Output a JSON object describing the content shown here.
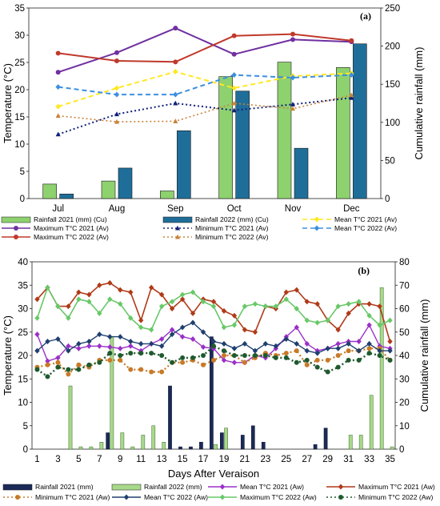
{
  "colors": {
    "rain2021_a": "#8ED16F",
    "rain2022_a": "#1F6E99",
    "max2021": "#7030A0",
    "max2022": "#C0392B",
    "min2021": "#10207A",
    "min2022": "#C8823A",
    "mean2021": "#FFE81F",
    "mean2022": "#3C8FE0",
    "rain2021_b": "#1B2A57",
    "rain2022_b": "#A8D88A",
    "mean2021_b": "#9B30C8",
    "max2021_b": "#B03A18",
    "min2021_b": "#C77A28",
    "mean2022_b": "#1F3F6E",
    "max2022_b": "#68C868",
    "min2022_b": "#1E5A2E"
  },
  "chart_data": [
    {
      "type": "bar-line",
      "panel_label": "(a)",
      "categories": [
        "Jul",
        "Aug",
        "Sep",
        "Oct",
        "Nov",
        "Dec"
      ],
      "ylabel": "Temperature (°C)",
      "ylabel_right": "Cumulative rainfall (mm)",
      "ylim": [
        0,
        35
      ],
      "yticks": [
        0,
        5,
        10,
        15,
        20,
        25,
        30,
        35
      ],
      "ylim_right": [
        0,
        250
      ],
      "yticks_right": [
        0,
        50,
        100,
        150,
        200,
        250
      ],
      "legend_position": "bottom",
      "bars": [
        {
          "name": "Rainfall 2021 (mm) (Cu)",
          "values": [
            19,
            23,
            10,
            160,
            179,
            172
          ]
        },
        {
          "name": "Rainfall 2022 (mm) (Cu)",
          "values": [
            6,
            40,
            89,
            141,
            66,
            203
          ]
        }
      ],
      "lines": [
        {
          "name": "Maximum  T°C 2021 (Av)",
          "values": [
            23.2,
            26.8,
            31.3,
            26.5,
            29.2,
            28.8
          ]
        },
        {
          "name": "Maximum T°C 2022 (Av)",
          "values": [
            26.7,
            25.3,
            25.1,
            29.9,
            30.2,
            29.0
          ]
        },
        {
          "name": "Minimum T°C 2021 (Av)",
          "values": [
            11.8,
            15.5,
            17.5,
            16.2,
            17.3,
            18.5
          ]
        },
        {
          "name": "Minimum T°C 2022 (Av)",
          "values": [
            15.2,
            14.1,
            14.2,
            17.5,
            16.5,
            19.0
          ]
        },
        {
          "name": "Mean T°C 2021 (Av)",
          "values": [
            16.9,
            20.3,
            23.3,
            20.3,
            22.5,
            23.0
          ]
        },
        {
          "name": "Mean T°C 2022 (Av)",
          "values": [
            20.5,
            19.1,
            19.1,
            22.7,
            22.2,
            22.7
          ]
        }
      ]
    },
    {
      "type": "bar-line",
      "panel_label": "(b)",
      "x": [
        1,
        2,
        3,
        4,
        5,
        6,
        7,
        8,
        9,
        10,
        11,
        12,
        13,
        14,
        15,
        16,
        17,
        18,
        19,
        20,
        21,
        22,
        23,
        24,
        25,
        26,
        27,
        28,
        29,
        30,
        31,
        32,
        33,
        34,
        35
      ],
      "xticks": [
        1,
        3,
        5,
        7,
        9,
        11,
        13,
        15,
        17,
        19,
        21,
        23,
        25,
        27,
        29,
        31,
        33,
        35
      ],
      "xlabel": "Days After Veraison",
      "ylabel": "Temperature (°C)",
      "ylabel_right": "Cumulative rainfall (mm)",
      "ylim": [
        0,
        40
      ],
      "yticks": [
        0,
        5,
        10,
        15,
        20,
        25,
        30,
        35,
        40
      ],
      "ylim_right": [
        0,
        80
      ],
      "yticks_right": [
        0,
        10,
        20,
        30,
        40,
        50,
        60,
        70,
        80
      ],
      "legend_position": "bottom",
      "bars": [
        {
          "name": "Rainfall 2021 (mm)",
          "values": [
            0,
            0,
            0,
            0,
            0,
            0,
            0,
            7,
            0,
            0,
            0,
            0,
            0,
            27,
            1,
            1,
            3,
            48,
            7,
            0,
            6,
            10,
            3,
            0,
            0,
            0,
            0,
            2,
            9,
            0,
            0,
            0,
            0,
            0,
            0
          ]
        },
        {
          "name": "Rainfall 2022 (mm)",
          "values": [
            0,
            0,
            0,
            27,
            1,
            1,
            3,
            48,
            7,
            1,
            6,
            10,
            3,
            0,
            0,
            0,
            0,
            2,
            9,
            0,
            0,
            0,
            0,
            0,
            0,
            0,
            0,
            0,
            0,
            0,
            6,
            6,
            23,
            69,
            1
          ]
        }
      ],
      "lines": [
        {
          "name": "Mean T°C 2021 (Aw)",
          "values": [
            24.5,
            18.8,
            19.5,
            22.0,
            21.5,
            22.0,
            22.0,
            21.8,
            21.5,
            22.0,
            21.0,
            22.5,
            23.5,
            25.5,
            24.0,
            23.5,
            21.8,
            21.5,
            19.0,
            18.5,
            18.5,
            20.0,
            19.5,
            21.5,
            24.0,
            26.0,
            22.5,
            21.0,
            21.5,
            22.5,
            23.0,
            23.0,
            26.5,
            22.0,
            21.5
          ]
        },
        {
          "name": "Maximum T°C 2021 (Aw)",
          "values": [
            32.0,
            34.5,
            30.5,
            30.5,
            33.5,
            33.0,
            35.0,
            35.5,
            34.0,
            33.5,
            27.5,
            34.5,
            33.0,
            30.0,
            32.0,
            29.0,
            32.0,
            31.5,
            29.5,
            28.5,
            25.5,
            25.0,
            30.5,
            30.0,
            33.5,
            34.0,
            31.5,
            31.0,
            27.5,
            25.5,
            29.0,
            31.0,
            31.0,
            30.5,
            23.0
          ]
        },
        {
          "name": "Minimum T°C 2021 (Aw)",
          "values": [
            17.5,
            18.0,
            18.5,
            16.0,
            18.0,
            17.5,
            19.0,
            19.0,
            19.0,
            17.0,
            17.0,
            16.5,
            16.5,
            18.5,
            18.5,
            19.0,
            18.0,
            19.0,
            20.0,
            20.0,
            18.5,
            19.5,
            20.5,
            20.0,
            20.5,
            21.0,
            18.0,
            19.0,
            19.0,
            20.0,
            21.0,
            21.0,
            21.5,
            21.5,
            19.0
          ]
        },
        {
          "name": "Mean T°C 2022 (Aw)",
          "values": [
            21.0,
            23.0,
            23.5,
            21.0,
            22.5,
            23.0,
            24.5,
            24.0,
            24.0,
            23.0,
            22.5,
            22.5,
            22.0,
            24.5,
            26.0,
            27.0,
            25.0,
            23.0,
            22.5,
            21.5,
            22.5,
            21.0,
            22.5,
            22.0,
            23.5,
            22.5,
            21.0,
            20.5,
            21.5,
            21.5,
            22.5,
            21.0,
            22.5,
            21.0,
            21.0
          ]
        },
        {
          "name": "Maximum T°C 2022 (Aw)",
          "values": [
            28.0,
            34.5,
            30.5,
            28.0,
            32.0,
            31.5,
            29.0,
            32.0,
            31.0,
            28.0,
            26.0,
            25.5,
            30.5,
            31.5,
            33.0,
            33.5,
            31.5,
            30.5,
            26.0,
            26.5,
            30.5,
            31.0,
            30.5,
            30.5,
            32.0,
            30.0,
            27.5,
            27.0,
            27.5,
            30.5,
            31.0,
            31.5,
            28.5,
            26.5,
            27.5
          ]
        },
        {
          "name": "Minimum T°C 2022 (Aw)",
          "values": [
            17.0,
            15.5,
            17.5,
            17.0,
            17.0,
            18.0,
            18.5,
            20.5,
            20.0,
            20.5,
            20.5,
            20.5,
            20.0,
            18.5,
            19.5,
            19.5,
            20.0,
            22.0,
            21.0,
            20.0,
            20.0,
            20.0,
            20.0,
            19.5,
            19.5,
            18.5,
            19.0,
            17.5,
            16.5,
            17.5,
            19.0,
            19.0,
            20.5,
            20.0,
            19.0
          ]
        }
      ]
    }
  ]
}
